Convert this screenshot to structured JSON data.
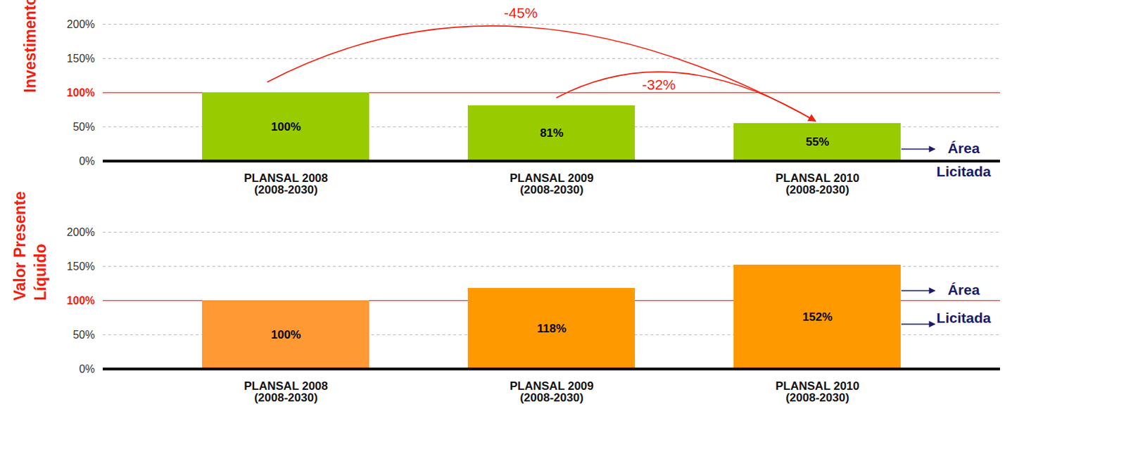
{
  "chart_data": [
    {
      "type": "bar",
      "y_label": "Investimento",
      "categories": [
        "PLANSAL 2008\n(2008-2030)",
        "PLANSAL 2009\n(2008-2030)",
        "PLANSAL 2010\n(2008-2030)"
      ],
      "values": [
        100,
        81,
        55
      ],
      "value_labels": [
        "100%",
        "81%",
        "55%"
      ],
      "data_labels": true,
      "color": "#99cc00",
      "ylim": [
        0,
        200
      ],
      "yticks": [
        {
          "value": 0,
          "label": "0%"
        },
        {
          "value": 50,
          "label": "50%"
        },
        {
          "value": 100,
          "label": "100%"
        },
        {
          "value": 150,
          "label": "150%"
        },
        {
          "value": 200,
          "label": "200%"
        }
      ],
      "grid": true,
      "reference_line": 100,
      "annotations": [
        "-45%",
        "-32%"
      ],
      "side_labels": [
        "Área Licitada"
      ]
    },
    {
      "type": "bar",
      "y_label": "Valor Presente Líquido",
      "categories": [
        "PLANSAL 2008\n(2008-2030)",
        "PLANSAL 2009\n(2008-2030)",
        "PLANSAL 2010\n(2008-2030)"
      ],
      "values": [
        100,
        118,
        152
      ],
      "value_labels": [
        "100%",
        "118%",
        "152%"
      ],
      "data_labels": true,
      "colors": [
        "#ff9933",
        "#ff9900",
        "#ff9900"
      ],
      "ylim": [
        0,
        200
      ],
      "yticks": [
        {
          "value": 0,
          "label": "0%"
        },
        {
          "value": 50,
          "label": "50%"
        },
        {
          "value": 100,
          "label": "100%"
        },
        {
          "value": 150,
          "label": "150%"
        },
        {
          "value": 200,
          "label": "200%"
        }
      ],
      "grid": true,
      "reference_line": 100,
      "side_labels": [
        "Área",
        "Licitada"
      ]
    }
  ]
}
